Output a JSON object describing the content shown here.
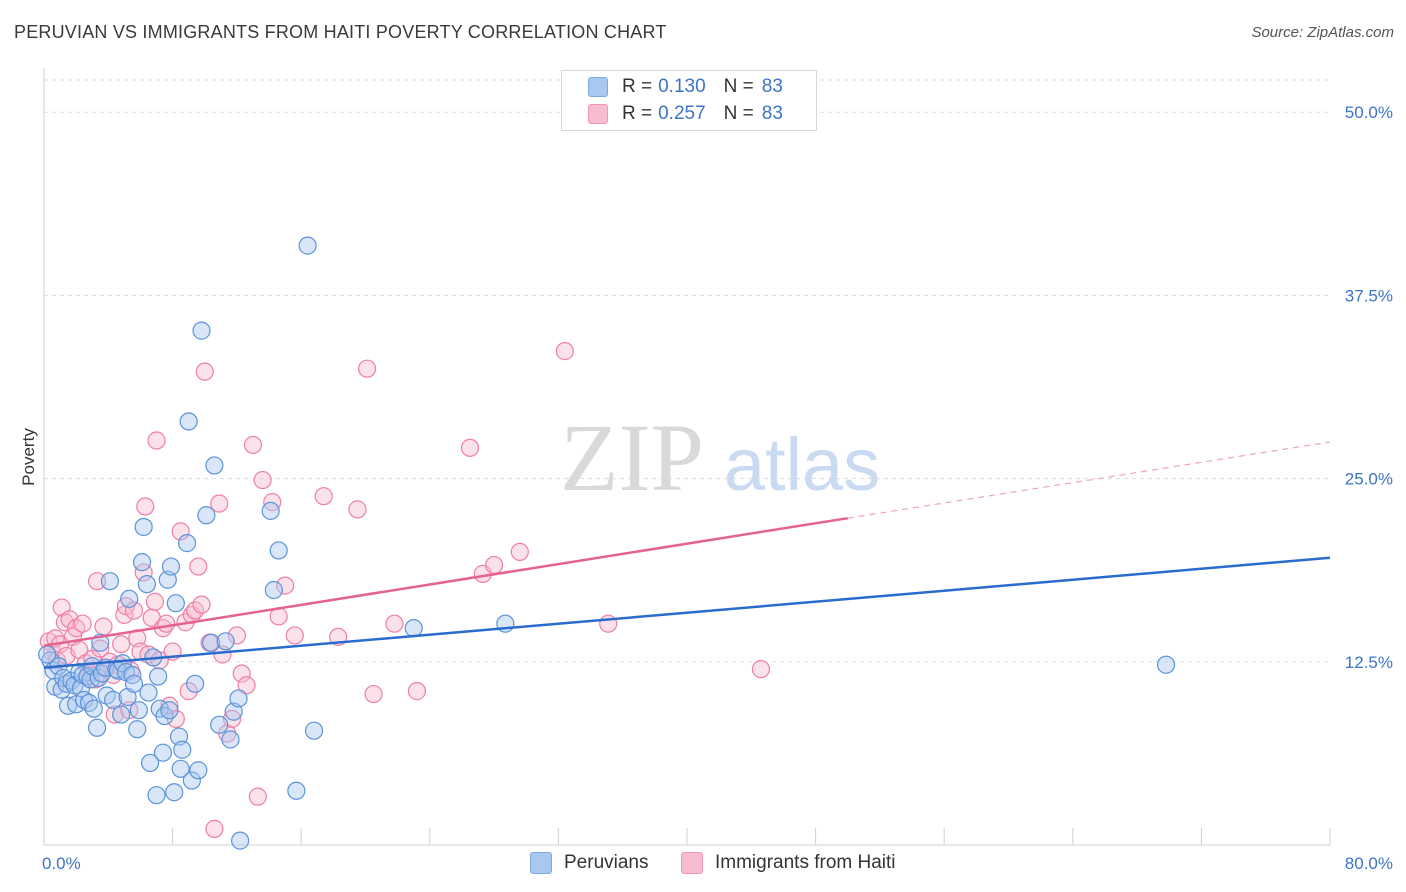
{
  "header": {
    "title": "PERUVIAN VS IMMIGRANTS FROM HAITI POVERTY CORRELATION CHART",
    "source": "Source: ZipAtlas.com"
  },
  "legend": {
    "rows": [
      {
        "r_label": "R =",
        "r_value": "0.130",
        "n_label": "N =",
        "n_value": "83",
        "color": "#a8c8f0",
        "border": "#7aaae0"
      },
      {
        "r_label": "R =",
        "r_value": "0.257",
        "n_label": "N =",
        "n_value": "83",
        "color": "#f7bcd0",
        "border": "#ee98b4"
      }
    ]
  },
  "watermark": {
    "zip": "ZIP",
    "atlas": "atlas"
  },
  "bottom_legend": {
    "items": [
      {
        "label": "Peruvians",
        "color": "#a8c8f0",
        "border": "#7aaae0"
      },
      {
        "label": "Immigrants from Haiti",
        "color": "#f7bcd0",
        "border": "#ee98b4"
      }
    ]
  },
  "chart_data": {
    "type": "scatter",
    "xlabel": "",
    "ylabel": "Poverty",
    "xlim": [
      0,
      80
    ],
    "ylim": [
      0,
      50
    ],
    "x_tick_labels": [
      "0.0%",
      "80.0%"
    ],
    "y_ticks": [
      12.5,
      25.0,
      37.5,
      50.0
    ],
    "y_tick_labels": [
      "12.5%",
      "25.0%",
      "37.5%",
      "50.0%"
    ],
    "grid": true,
    "legend_position": "top-center",
    "colors": {
      "peruvians": "#5b93d9",
      "haiti": "#ee7fa6",
      "peruvians_line": "#2a6ccd",
      "haiti_line": "#e5628f"
    },
    "series": [
      {
        "name": "Peruvians",
        "r": 0.13,
        "n": 83,
        "trend": {
          "x": [
            0,
            80
          ],
          "y": [
            12.1,
            19.6
          ]
        },
        "points": [
          [
            0.4,
            12.6
          ],
          [
            0.6,
            11.9
          ],
          [
            0.7,
            10.8
          ],
          [
            0.9,
            12.2
          ],
          [
            1.1,
            10.6
          ],
          [
            1.2,
            11.4
          ],
          [
            1.4,
            11.0
          ],
          [
            1.5,
            9.5
          ],
          [
            1.7,
            11.2
          ],
          [
            1.9,
            10.9
          ],
          [
            2.0,
            9.6
          ],
          [
            2.2,
            11.8
          ],
          [
            2.3,
            10.7
          ],
          [
            2.4,
            11.6
          ],
          [
            2.5,
            9.9
          ],
          [
            2.7,
            11.5
          ],
          [
            2.8,
            9.7
          ],
          [
            2.9,
            11.3
          ],
          [
            3.0,
            12.2
          ],
          [
            3.1,
            9.3
          ],
          [
            3.3,
            8.0
          ],
          [
            3.4,
            11.4
          ],
          [
            3.5,
            13.8
          ],
          [
            3.6,
            11.7
          ],
          [
            3.8,
            12.1
          ],
          [
            3.9,
            10.2
          ],
          [
            4.1,
            18.0
          ],
          [
            4.3,
            9.9
          ],
          [
            4.5,
            12.0
          ],
          [
            4.6,
            11.9
          ],
          [
            4.8,
            8.9
          ],
          [
            4.9,
            12.4
          ],
          [
            5.1,
            11.8
          ],
          [
            5.2,
            10.1
          ],
          [
            5.3,
            16.8
          ],
          [
            5.5,
            11.6
          ],
          [
            5.6,
            11.0
          ],
          [
            5.8,
            7.9
          ],
          [
            5.9,
            9.2
          ],
          [
            6.1,
            19.3
          ],
          [
            6.2,
            21.7
          ],
          [
            6.4,
            17.8
          ],
          [
            6.5,
            10.4
          ],
          [
            6.6,
            5.6
          ],
          [
            6.8,
            12.8
          ],
          [
            7.0,
            3.4
          ],
          [
            7.1,
            11.5
          ],
          [
            7.2,
            9.3
          ],
          [
            7.4,
            6.3
          ],
          [
            7.5,
            8.8
          ],
          [
            7.7,
            18.1
          ],
          [
            7.8,
            9.2
          ],
          [
            7.9,
            19.0
          ],
          [
            8.1,
            3.6
          ],
          [
            8.2,
            16.5
          ],
          [
            8.4,
            7.4
          ],
          [
            8.5,
            5.2
          ],
          [
            8.6,
            6.5
          ],
          [
            8.9,
            20.6
          ],
          [
            9.0,
            28.9
          ],
          [
            9.2,
            4.4
          ],
          [
            9.4,
            11.0
          ],
          [
            9.6,
            5.1
          ],
          [
            9.8,
            35.1
          ],
          [
            10.1,
            22.5
          ],
          [
            10.4,
            13.8
          ],
          [
            10.6,
            25.9
          ],
          [
            10.9,
            8.2
          ],
          [
            11.3,
            13.9
          ],
          [
            11.6,
            7.2
          ],
          [
            11.8,
            9.1
          ],
          [
            12.1,
            10.0
          ],
          [
            12.2,
            0.3
          ],
          [
            14.1,
            22.8
          ],
          [
            14.3,
            17.4
          ],
          [
            14.6,
            20.1
          ],
          [
            15.7,
            3.7
          ],
          [
            16.4,
            40.9
          ],
          [
            16.8,
            7.8
          ],
          [
            23.0,
            14.8
          ],
          [
            28.7,
            15.1
          ],
          [
            69.8,
            12.3
          ],
          [
            0.2,
            13.0
          ]
        ]
      },
      {
        "name": "Immigrants from Haiti",
        "r": 0.257,
        "n": 83,
        "trend": {
          "x": [
            0,
            50
          ],
          "y": [
            13.6,
            22.3
          ],
          "dash_to": {
            "x": 80,
            "y": 27.5
          }
        },
        "points": [
          [
            0.3,
            13.9
          ],
          [
            0.5,
            13.2
          ],
          [
            0.7,
            14.1
          ],
          [
            0.8,
            12.6
          ],
          [
            1.0,
            13.7
          ],
          [
            1.1,
            16.2
          ],
          [
            1.3,
            15.2
          ],
          [
            1.4,
            12.9
          ],
          [
            1.6,
            15.4
          ],
          [
            1.8,
            14.2
          ],
          [
            2.0,
            14.8
          ],
          [
            2.2,
            13.3
          ],
          [
            2.4,
            15.1
          ],
          [
            2.6,
            12.4
          ],
          [
            2.8,
            11.8
          ],
          [
            3.0,
            12.7
          ],
          [
            3.2,
            11.3
          ],
          [
            3.3,
            18.0
          ],
          [
            3.5,
            13.4
          ],
          [
            3.7,
            14.9
          ],
          [
            3.9,
            12.1
          ],
          [
            4.1,
            12.5
          ],
          [
            4.3,
            11.6
          ],
          [
            4.4,
            8.9
          ],
          [
            4.6,
            12.3
          ],
          [
            4.8,
            13.7
          ],
          [
            5.0,
            15.7
          ],
          [
            5.1,
            16.3
          ],
          [
            5.3,
            9.2
          ],
          [
            5.4,
            11.9
          ],
          [
            5.6,
            16.0
          ],
          [
            5.8,
            14.1
          ],
          [
            6.0,
            13.2
          ],
          [
            6.2,
            18.6
          ],
          [
            6.3,
            23.1
          ],
          [
            6.5,
            13.0
          ],
          [
            6.7,
            15.5
          ],
          [
            6.9,
            16.6
          ],
          [
            7.0,
            27.6
          ],
          [
            7.2,
            12.6
          ],
          [
            7.4,
            14.8
          ],
          [
            7.6,
            15.1
          ],
          [
            7.8,
            9.5
          ],
          [
            8.0,
            13.2
          ],
          [
            8.2,
            8.6
          ],
          [
            8.5,
            21.4
          ],
          [
            8.8,
            15.2
          ],
          [
            9.0,
            10.5
          ],
          [
            9.2,
            15.7
          ],
          [
            9.4,
            16.0
          ],
          [
            9.6,
            19.0
          ],
          [
            9.8,
            16.4
          ],
          [
            10.0,
            32.3
          ],
          [
            10.3,
            13.8
          ],
          [
            10.6,
            1.1
          ],
          [
            10.9,
            23.3
          ],
          [
            11.1,
            13.0
          ],
          [
            11.4,
            7.6
          ],
          [
            11.7,
            8.6
          ],
          [
            12.0,
            14.3
          ],
          [
            12.3,
            11.7
          ],
          [
            12.6,
            10.9
          ],
          [
            13.0,
            27.3
          ],
          [
            13.3,
            3.3
          ],
          [
            13.6,
            24.9
          ],
          [
            14.2,
            23.4
          ],
          [
            14.6,
            15.6
          ],
          [
            15.0,
            17.7
          ],
          [
            15.6,
            14.3
          ],
          [
            17.4,
            23.8
          ],
          [
            18.3,
            14.2
          ],
          [
            19.5,
            22.9
          ],
          [
            20.1,
            32.5
          ],
          [
            20.5,
            10.3
          ],
          [
            21.8,
            15.1
          ],
          [
            23.2,
            10.5
          ],
          [
            26.5,
            27.1
          ],
          [
            27.3,
            18.5
          ],
          [
            28.0,
            19.1
          ],
          [
            29.6,
            20.0
          ],
          [
            32.4,
            33.7
          ],
          [
            35.1,
            15.1
          ],
          [
            44.6,
            12.0
          ]
        ]
      }
    ]
  }
}
